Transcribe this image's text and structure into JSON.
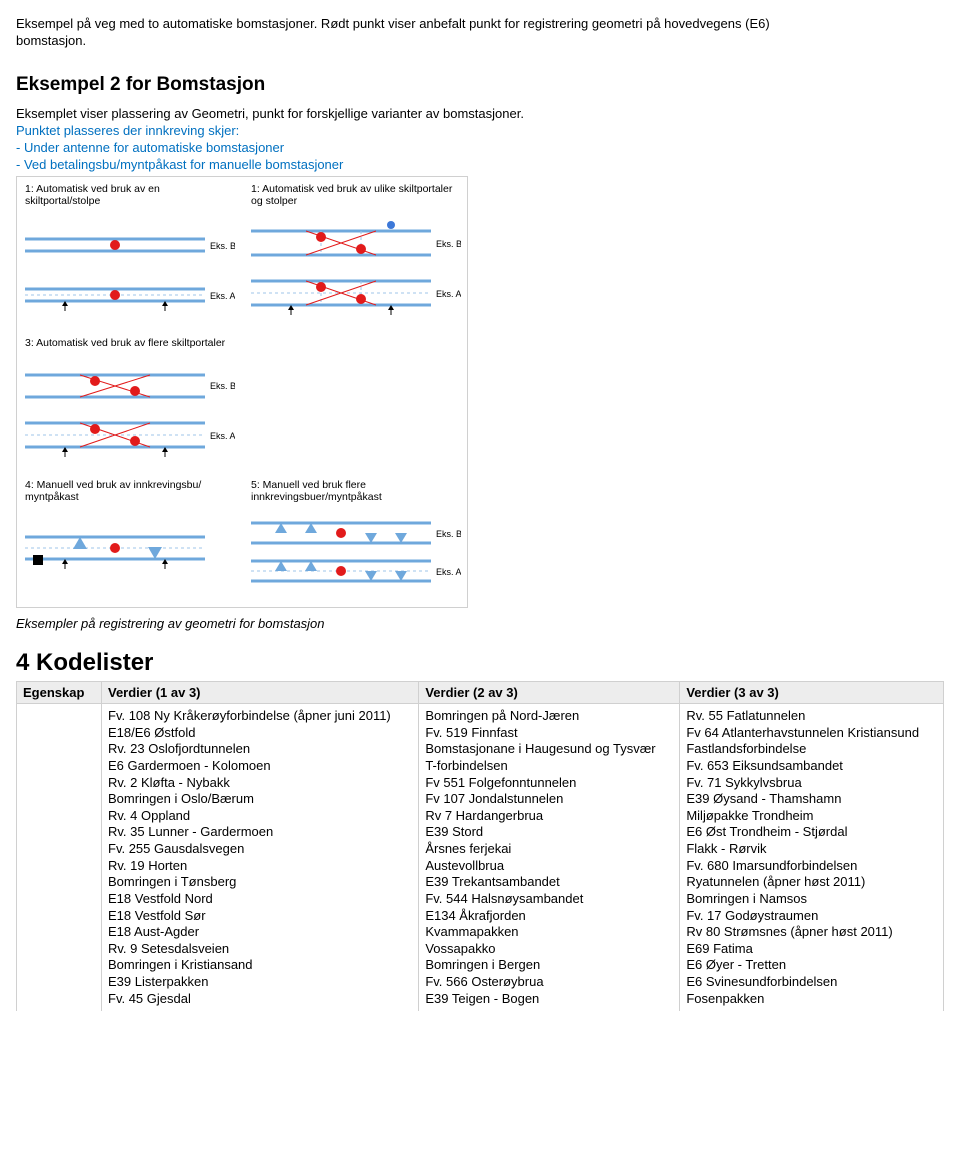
{
  "intro": {
    "line1": "Eksempel på veg med to automatiske bomstasjoner. Rødt punkt viser anbefalt punkt for registrering geometri på hovedvegens (E6)",
    "line2": "bomstasjon."
  },
  "example2": {
    "heading": "Eksempel 2 for Bomstasjon",
    "p1": "Eksemplet viser plassering av Geometri, punkt for forskjellige varianter av bomstasjoner.",
    "p2": "Punktet plasseres der innkreving skjer:",
    "p3": "- Under antenne for automatiske bomstasjoner",
    "p4": "- Ved betalingsbu/myntpåkast for manuelle bomstasjoner"
  },
  "diagram": {
    "colors": {
      "road": "#6fa8dc",
      "lane_dash": "#9fc5e8",
      "point_red": "#e21b1b",
      "point_blue": "#3c78d8",
      "marker_outline": "#3c78d8",
      "text": "#000000"
    },
    "cells": [
      {
        "title": "1: Automatisk ved bruk av en skiltportal/stolpe"
      },
      {
        "title": "1: Automatisk ved bruk av ulike skiltportaler og stolper"
      },
      {
        "title": "3: Automatisk ved bruk av flere skiltportaler"
      },
      {
        "title": ""
      },
      {
        "title": "4: Manuell ved bruk av innkrevingsbu/ myntpåkast"
      },
      {
        "title": "5: Manuell ved bruk flere innkrevingsbuer/myntpåkast"
      }
    ],
    "labels": {
      "eksA": "Eks. A",
      "eksB": "Eks. B"
    },
    "caption": "Eksempler på registrering av geometri for bomstasjon"
  },
  "kodelister": {
    "heading": "4 Kodelister",
    "columns": [
      "Egenskap",
      "Verdier (1 av 3)",
      "Verdier (2 av 3)",
      "Verdier (3 av 3)"
    ],
    "row": {
      "egenskap": "",
      "col1": [
        "Fv. 108 Ny Kråkerøyforbindelse (åpner juni 2011)",
        "E18/E6 Østfold",
        "Rv. 23 Oslofjordtunnelen",
        "E6 Gardermoen - Kolomoen",
        "Rv. 2 Kløfta - Nybakk",
        "Bomringen i Oslo/Bærum",
        "Rv. 4 Oppland",
        "Rv. 35 Lunner - Gardermoen",
        "Fv. 255 Gausdalsvegen",
        "Rv. 19 Horten",
        "Bomringen i Tønsberg",
        "E18 Vestfold Nord",
        "E18 Vestfold Sør",
        "E18 Aust-Agder",
        "Rv. 9 Setesdalsveien",
        "Bomringen i Kristiansand",
        "E39 Listerpakken",
        "Fv. 45 Gjesdal"
      ],
      "col2": [
        "Bomringen på Nord-Jæren",
        "Fv. 519 Finnfast",
        "Bomstasjonane i Haugesund og Tysvær",
        "T-forbindelsen",
        "Fv 551 Folgefonntunnelen",
        "Fv 107 Jondalstunnelen",
        "Rv 7 Hardangerbrua",
        "E39 Stord",
        "Årsnes ferjekai",
        "Austevollbrua",
        "E39 Trekantsambandet",
        "Fv. 544 Halsnøysambandet",
        "E134 Åkrafjorden",
        "Kvammapakken",
        "Vossapakko",
        "Bomringen i Bergen",
        "Fv. 566 Osterøybrua",
        "E39 Teigen - Bogen"
      ],
      "col3": [
        "Rv. 55 Fatlatunnelen",
        "Fv 64 Atlanterhavstunnelen Kristiansund",
        "Fastlandsforbindelse",
        "Fv. 653 Eiksundsambandet",
        "Fv. 71 Sykkylvsbrua",
        "E39 Øysand - Thamshamn",
        "Miljøpakke Trondheim",
        "E6 Øst Trondheim - Stjørdal",
        "Flakk - Rørvik",
        "Fv. 680 Imarsundforbindelsen",
        "Ryatunnelen (åpner høst 2011)",
        "Bomringen i Namsos",
        "Fv. 17 Godøystraumen",
        "Rv 80 Strømsnes (åpner høst 2011)",
        "E69 Fatima",
        "E6 Øyer - Tretten",
        "E6 Svinesundforbindelsen",
        "Fosenpakken"
      ]
    }
  }
}
